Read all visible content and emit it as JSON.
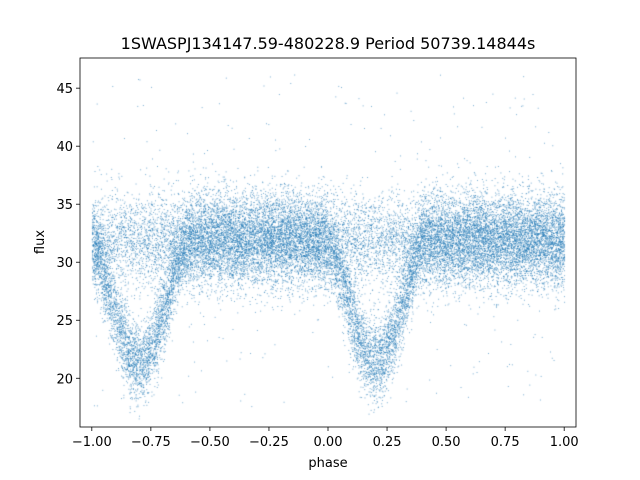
{
  "chart_data": {
    "type": "scatter",
    "title": "1SWASPJ134147.59-480228.9 Period 50739.14844s",
    "xlabel": "phase",
    "ylabel": "flux",
    "xlim": [
      -1.05,
      1.05
    ],
    "ylim": [
      15.8,
      47.6
    ],
    "xticks": [
      -1.0,
      -0.75,
      -0.5,
      -0.25,
      0.0,
      0.25,
      0.5,
      0.75,
      1.0
    ],
    "xtick_labels": [
      "−1.00",
      "−0.75",
      "−0.50",
      "−0.25",
      "0.00",
      "0.25",
      "0.50",
      "0.75",
      "1.00"
    ],
    "yticks": [
      20,
      25,
      30,
      35,
      40,
      45
    ],
    "ytick_labels": [
      "20",
      "25",
      "30",
      "35",
      "40",
      "45"
    ],
    "grid": false,
    "color": "#1f77b4",
    "series": [
      {
        "phase_range": [
          -1.0,
          1.0
        ],
        "baseline_flux": 32.0,
        "baseline_scatter": 2.0,
        "outlier_flux_range": [
          17.5,
          46.2
        ],
        "eclipses": [
          {
            "center_phase": -0.8,
            "min_flux": 21.5,
            "half_width_phase": 0.22
          },
          {
            "center_phase": 0.2,
            "min_flux": 21.5,
            "half_width_phase": 0.22
          }
        ],
        "n_points": 26000
      }
    ]
  }
}
